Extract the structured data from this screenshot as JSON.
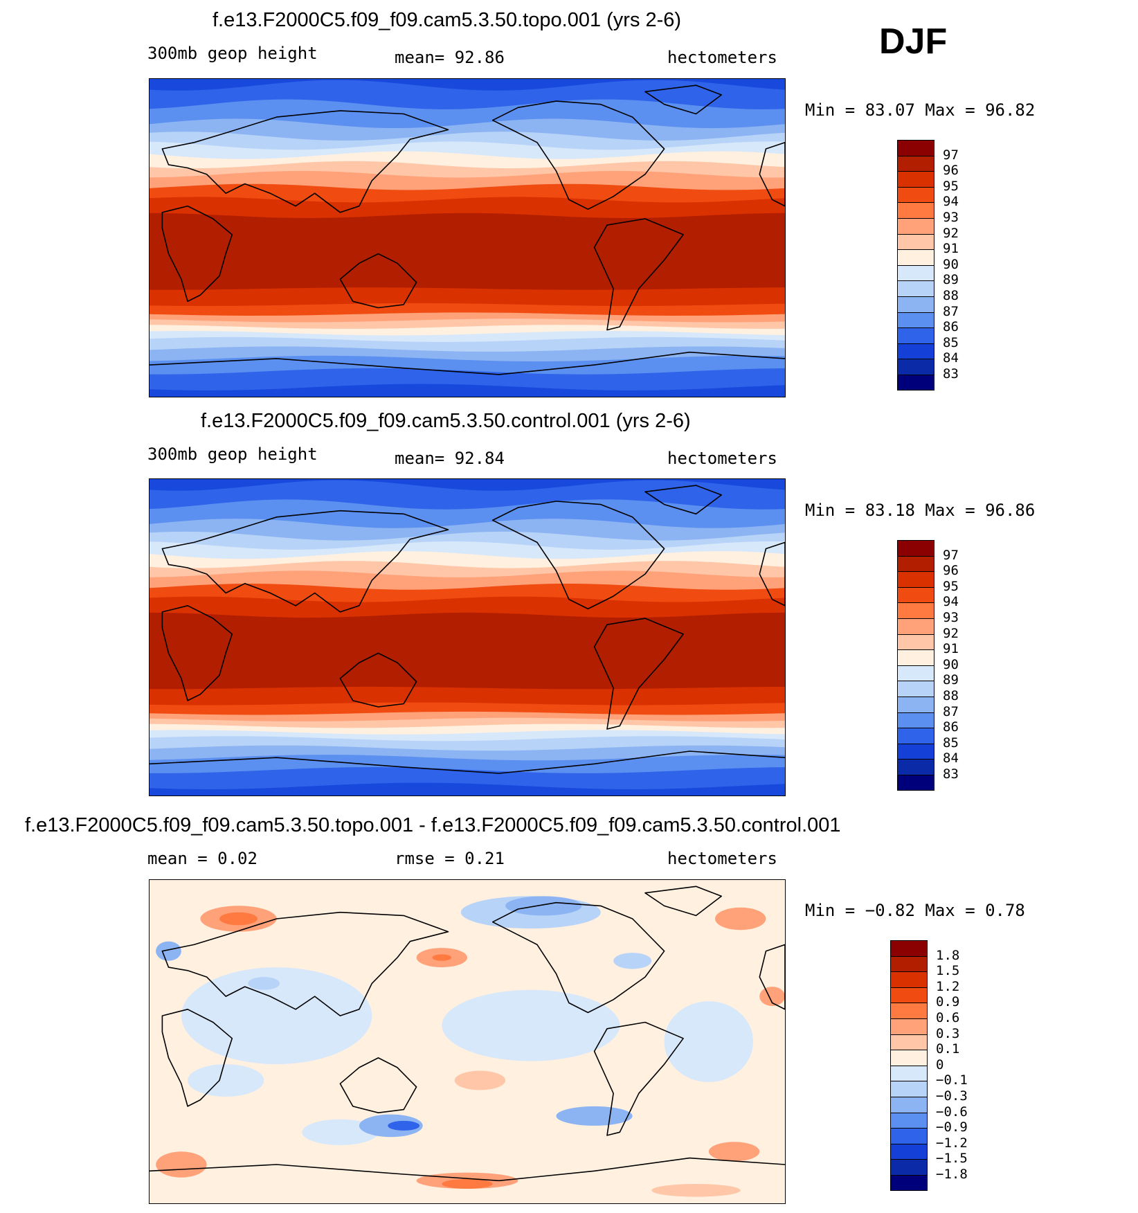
{
  "season": "DJF",
  "panels": [
    {
      "title": "f.e13.F2000C5.f09_f09.cam5.3.50.topo.001 (yrs 2-6)",
      "left_text": "300mb geop height",
      "mid_text": "mean=   92.86",
      "units": "hectometers",
      "minmax": "Min =   83.07 Max =   96.82",
      "colorbar": {
        "labels": [
          "97",
          "96",
          "95",
          "94",
          "93",
          "92",
          "91",
          "90",
          "89",
          "88",
          "87",
          "86",
          "85",
          "84",
          "83"
        ],
        "colors": [
          "#8b0000",
          "#b21e00",
          "#d93100",
          "#f04b10",
          "#ff7a40",
          "#ffa27a",
          "#ffc6a8",
          "#fff0e0",
          "#d8e8fb",
          "#b8d3f8",
          "#8cb4f2",
          "#5b8ff0",
          "#2e63ea",
          "#1540d8",
          "#0a2aa8",
          "#00007a"
        ]
      },
      "map": {
        "field": "absolute",
        "bands": [
          "#1848dc",
          "#2e63ea",
          "#5b8ff0",
          "#8cb4f2",
          "#b8d3f8",
          "#d8e8fb",
          "#fff0e0",
          "#ffc6a8",
          "#ffa27a",
          "#f04b10",
          "#d93100",
          "#b21e00"
        ]
      }
    },
    {
      "title": "f.e13.F2000C5.f09_f09.cam5.3.50.control.001 (yrs 2-6)",
      "left_text": "300mb geop height",
      "mid_text": "mean=   92.84",
      "units": "hectometers",
      "minmax": "Min =   83.18 Max =   96.86",
      "colorbar": {
        "labels": [
          "97",
          "96",
          "95",
          "94",
          "93",
          "92",
          "91",
          "90",
          "89",
          "88",
          "87",
          "86",
          "85",
          "84",
          "83"
        ],
        "colors": [
          "#8b0000",
          "#b21e00",
          "#d93100",
          "#f04b10",
          "#ff7a40",
          "#ffa27a",
          "#ffc6a8",
          "#fff0e0",
          "#d8e8fb",
          "#b8d3f8",
          "#8cb4f2",
          "#5b8ff0",
          "#2e63ea",
          "#1540d8",
          "#0a2aa8",
          "#00007a"
        ]
      },
      "map": {
        "field": "absolute",
        "bands": [
          "#1848dc",
          "#2e63ea",
          "#5b8ff0",
          "#8cb4f2",
          "#b8d3f8",
          "#d8e8fb",
          "#fff0e0",
          "#ffc6a8",
          "#ffa27a",
          "#f04b10",
          "#d93100",
          "#b21e00"
        ]
      }
    },
    {
      "title": "f.e13.F2000C5.f09_f09.cam5.3.50.topo.001 - f.e13.F2000C5.f09_f09.cam5.3.50.control.001",
      "left_text": "mean =    0.02",
      "mid_text": "rmse =    0.21",
      "units": "hectometers",
      "minmax": "Min =  −0.82 Max =    0.78",
      "colorbar": {
        "labels": [
          "1.8",
          "1.5",
          "1.2",
          "0.9",
          "0.6",
          "0.3",
          "0.1",
          "0",
          "−0.1",
          "−0.3",
          "−0.6",
          "−0.9",
          "−1.2",
          "−1.5",
          "−1.8"
        ],
        "colors": [
          "#8b0000",
          "#b21e00",
          "#d93100",
          "#f04b10",
          "#ff7a40",
          "#ffa27a",
          "#ffc6a8",
          "#fff0e0",
          "#d8e8fb",
          "#b8d3f8",
          "#8cb4f2",
          "#5b8ff0",
          "#2e63ea",
          "#1540d8",
          "#0a2aa8",
          "#00007a"
        ]
      },
      "map": {
        "field": "difference",
        "background": "#fff0e0"
      }
    }
  ]
}
